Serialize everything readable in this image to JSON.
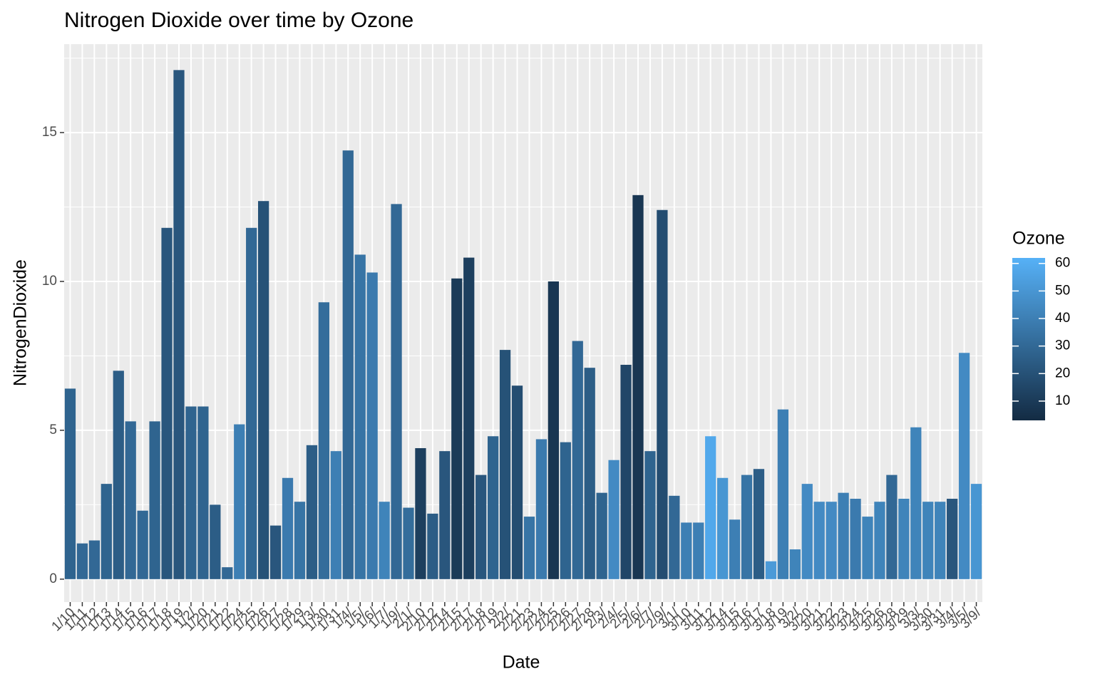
{
  "chart_data": {
    "type": "bar",
    "title": "Nitrogen Dioxide over time by Ozone",
    "x_label": "Date",
    "y_label": "NitrogenDioxide",
    "categories": [
      "1/10",
      "1/11",
      "1/12",
      "1/13",
      "1/14",
      "1/15",
      "1/16",
      "1/17",
      "1/18",
      "1/19",
      "1/2/",
      "1/20",
      "1/21",
      "1/22",
      "1/24",
      "1/25",
      "1/26",
      "1/27",
      "1/28",
      "1/29",
      "1/3/",
      "1/30",
      "1/31",
      "1/4/",
      "1/5/",
      "1/6/",
      "1/7/",
      "1/9/",
      "2/1/",
      "2/10",
      "2/12",
      "2/14",
      "2/15",
      "2/17",
      "2/18",
      "2/19",
      "2/2/",
      "2/21",
      "2/23",
      "2/24",
      "2/25",
      "2/26",
      "2/27",
      "2/28",
      "2/3/",
      "2/4/",
      "2/5/",
      "2/6/",
      "2/7/",
      "2/9/",
      "3/1/",
      "3/10",
      "3/11",
      "3/12",
      "3/14",
      "3/15",
      "3/16",
      "3/17",
      "3/18",
      "3/19",
      "3/2/",
      "3/20",
      "3/21",
      "3/22",
      "3/23",
      "3/24",
      "3/25",
      "3/26",
      "3/28",
      "3/29",
      "3/3/",
      "3/30",
      "3/31",
      "3/4/",
      "3/5/",
      "3/9/"
    ],
    "values": [
      6.4,
      1.2,
      1.3,
      3.2,
      7.0,
      5.3,
      2.3,
      5.3,
      11.8,
      17.1,
      5.8,
      5.8,
      2.5,
      0.4,
      5.2,
      11.8,
      12.7,
      1.8,
      3.4,
      2.6,
      4.5,
      9.3,
      4.3,
      14.4,
      10.9,
      10.3,
      2.6,
      12.6,
      2.4,
      4.4,
      2.2,
      4.3,
      10.1,
      10.8,
      3.5,
      4.8,
      7.7,
      6.5,
      2.1,
      4.7,
      10.0,
      4.6,
      8.0,
      7.1,
      2.9,
      4.0,
      7.2,
      12.9,
      4.3,
      12.4,
      2.8,
      1.9,
      1.9,
      4.8,
      3.4,
      2.0,
      3.5,
      3.7,
      0.6,
      5.7,
      1.0,
      3.2,
      2.6,
      2.6,
      2.9,
      2.7,
      2.1,
      2.6,
      3.5,
      2.7,
      5.1,
      2.6,
      2.6,
      2.7,
      7.6,
      3.2
    ],
    "fill": {
      "name": "Ozone",
      "values": [
        28,
        30,
        30,
        28,
        25,
        30,
        30,
        28,
        22,
        22,
        28,
        28,
        25,
        30,
        40,
        30,
        20,
        22,
        38,
        35,
        25,
        32,
        40,
        30,
        35,
        38,
        42,
        30,
        32,
        12,
        25,
        22,
        10,
        12,
        22,
        28,
        20,
        18,
        35,
        38,
        8,
        28,
        30,
        25,
        28,
        45,
        15,
        8,
        28,
        18,
        30,
        40,
        40,
        58,
        50,
        40,
        35,
        25,
        52,
        40,
        42,
        45,
        45,
        45,
        40,
        38,
        42,
        42,
        30,
        42,
        42,
        42,
        42,
        22,
        45,
        50
      ],
      "lim": [
        3,
        62
      ],
      "ticks": [
        10,
        20,
        30,
        40,
        50,
        60
      ],
      "colors": [
        "#132B43",
        "#56B1F7"
      ]
    },
    "ylim": [
      -0.77,
      17.97
    ],
    "yticks": [
      0,
      5,
      10,
      15
    ],
    "grid": true
  }
}
